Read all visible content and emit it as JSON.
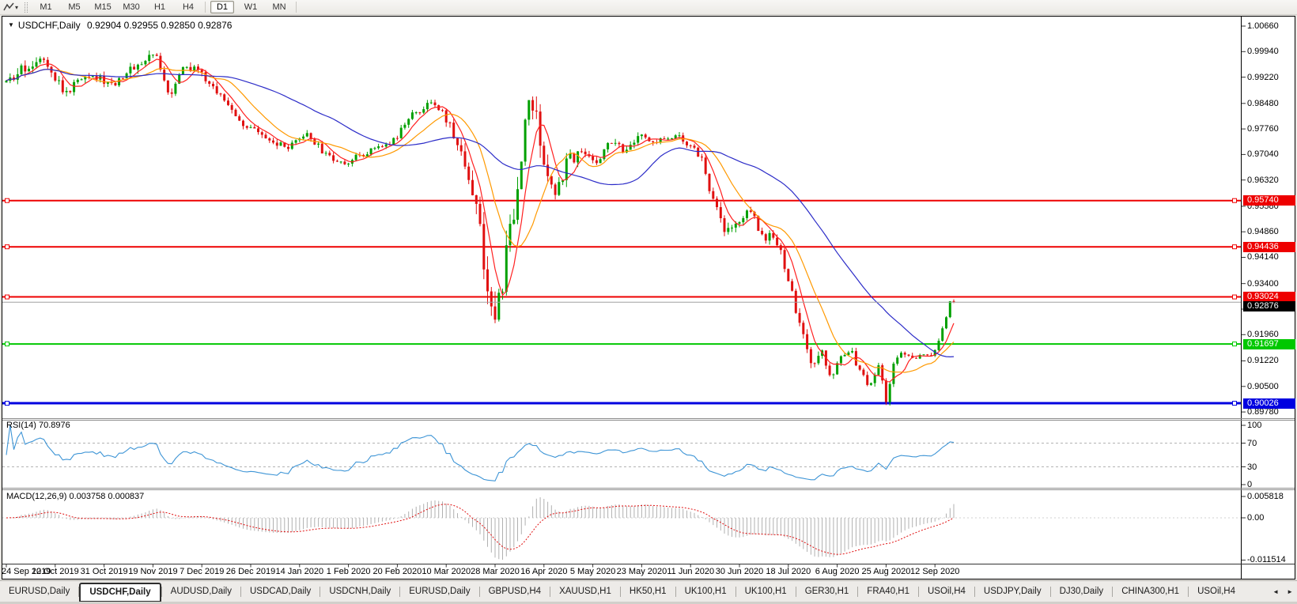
{
  "toolbar": {
    "timeframes": [
      "M1",
      "M5",
      "M15",
      "M30",
      "H1",
      "H4",
      "D1",
      "W1",
      "MN"
    ],
    "active_timeframe": "D1",
    "dropdown_caret": "▾"
  },
  "chart": {
    "window_menu_icon": "▼",
    "symbol": "USDCHF,Daily",
    "ohlc_text": "0.92904 0.92955 0.92850 0.92876",
    "price_axis": {
      "ticks": [
        "1.00660",
        "0.99940",
        "0.99220",
        "0.98480",
        "0.97760",
        "0.97040",
        "0.96320",
        "0.95580",
        "0.94860",
        "0.94140",
        "0.93400",
        "0.92680",
        "0.91960",
        "0.91220",
        "0.90500",
        "0.89780"
      ]
    },
    "current_price": {
      "label": "0.92876",
      "value": 0.92876,
      "line_color": "#a0a0a0",
      "label_bg": "#000000",
      "label_text": "#ffffff"
    },
    "date_axis": {
      "labels": [
        "24 Sep 2019",
        "12 Oct 2019",
        "31 Oct 2019",
        "19 Nov 2019",
        "7 Dec 2019",
        "26 Dec 2019",
        "14 Jan 2020",
        "1 Feb 2020",
        "20 Feb 2020",
        "10 Mar 2020",
        "28 Mar 2020",
        "16 Apr 2020",
        "5 May 2020",
        "23 May 2020",
        "11 Jun 2020",
        "30 Jun 2020",
        "18 Jul 2020",
        "6 Aug 2020",
        "25 Aug 2020",
        "12 Sep 2020"
      ]
    }
  },
  "rsi": {
    "label": "RSI(14) 70.8976",
    "value": 70.8976,
    "line_color": "#3e95d6",
    "levels": [
      70,
      30
    ],
    "ticks": [
      {
        "label": "100",
        "value": 100
      },
      {
        "label": "70",
        "value": 70
      },
      {
        "label": "30",
        "value": 30
      },
      {
        "label": "0",
        "value": 0
      }
    ]
  },
  "macd": {
    "label": "MACD(12,26,9) 0.003758 0.000837",
    "macd_value": 0.003758,
    "signal_value": 0.000837,
    "histogram_color": "#b0b0b0",
    "signal_color": "#e01010",
    "ticks": [
      {
        "label": "0.005818",
        "value": 0.005818
      },
      {
        "label": "0.00",
        "value": 0
      },
      {
        "label": "-0.011514",
        "value": -0.011514
      }
    ]
  },
  "tabs": {
    "items": [
      "EURUSD,Daily",
      "USDCHF,Daily",
      "AUDUSD,Daily",
      "USDCAD,Daily",
      "USDCNH,Daily",
      "EURUSD,Daily",
      "GBPUSD,H4",
      "XAUUSD,H1",
      "HK50,H1",
      "UK100,H1",
      "UK100,H1",
      "GER30,H1",
      "FRA40,H1",
      "USOil,H4",
      "USDJPY,Daily",
      "DJ30,Daily",
      "CHINA300,H1",
      "USOil,H4"
    ],
    "active_index": 1,
    "scroll_left_icon": "◄",
    "scroll_right_icon": "►"
  },
  "chart_data": {
    "type": "candlestick",
    "symbol": "USDCHF",
    "timeframe": "Daily",
    "current_ohlc": {
      "open": 0.92904,
      "high": 0.92955,
      "low": 0.9285,
      "close": 0.92876
    },
    "y_axis": {
      "top_tick": 1.0066,
      "tick_step": 0.0072,
      "bottom_tick": 0.8978
    },
    "x_start": "24 Sep 2019",
    "x_end_visible": "12 Sep 2020",
    "candle_count": 253,
    "up_color": "#00a000",
    "down_color": "#e01010",
    "moving_average_colors": [
      "#ff2020",
      "#ff9900",
      "#2c2cc8"
    ],
    "horizontal_levels": [
      {
        "price": 0.9574,
        "label": "0.95740",
        "color": "#ee0000",
        "width": 2
      },
      {
        "price": 0.94436,
        "label": "0.94436",
        "color": "#ee0000",
        "width": 2
      },
      {
        "price": 0.93024,
        "label": "0.93024",
        "color": "#ee0000",
        "width": 2
      },
      {
        "price": 0.91697,
        "label": "0.91697",
        "color": "#00c800",
        "width": 2
      },
      {
        "price": 0.90026,
        "label": "0.90026",
        "color": "#0000e0",
        "width": 3
      }
    ],
    "indicators": [
      {
        "name": "RSI",
        "period": 14,
        "current_value": 70.8976
      },
      {
        "name": "MACD",
        "fast": 12,
        "slow": 26,
        "signal": 9,
        "current_value": 0.003758,
        "current_signal": 0.000837
      }
    ],
    "price_path": [
      [
        0.0,
        0.9895,
        0.0022
      ],
      [
        0.018,
        0.9945,
        0.002
      ],
      [
        0.04,
        0.9985,
        0.0018
      ],
      [
        0.062,
        0.9872,
        0.0018
      ],
      [
        0.085,
        0.9938,
        0.0016
      ],
      [
        0.11,
        0.99,
        0.0016
      ],
      [
        0.135,
        0.9952,
        0.0015
      ],
      [
        0.158,
        0.9988,
        0.0015
      ],
      [
        0.172,
        0.9875,
        0.0016
      ],
      [
        0.188,
        0.9958,
        0.0016
      ],
      [
        0.205,
        0.993,
        0.0015
      ],
      [
        0.228,
        0.9862,
        0.0015
      ],
      [
        0.252,
        0.9788,
        0.0014
      ],
      [
        0.275,
        0.9742,
        0.0013
      ],
      [
        0.298,
        0.972,
        0.0012
      ],
      [
        0.318,
        0.9762,
        0.0011
      ],
      [
        0.338,
        0.9698,
        0.0011
      ],
      [
        0.358,
        0.968,
        0.001
      ],
      [
        0.382,
        0.9714,
        0.001
      ],
      [
        0.408,
        0.9742,
        0.0011
      ],
      [
        0.432,
        0.9826,
        0.0012
      ],
      [
        0.452,
        0.985,
        0.0013
      ],
      [
        0.468,
        0.9788,
        0.0018
      ],
      [
        0.483,
        0.969,
        0.0026
      ],
      [
        0.497,
        0.9565,
        0.0036
      ],
      [
        0.51,
        0.928,
        0.005
      ],
      [
        0.517,
        0.9215,
        0.0055
      ],
      [
        0.527,
        0.9415,
        0.005
      ],
      [
        0.538,
        0.9555,
        0.0046
      ],
      [
        0.55,
        0.9872,
        0.0058
      ],
      [
        0.556,
        0.9855,
        0.005
      ],
      [
        0.568,
        0.9645,
        0.004
      ],
      [
        0.58,
        0.9612,
        0.003
      ],
      [
        0.594,
        0.9688,
        0.0022
      ],
      [
        0.609,
        0.9718,
        0.0018
      ],
      [
        0.624,
        0.9682,
        0.0016
      ],
      [
        0.639,
        0.9748,
        0.0015
      ],
      [
        0.654,
        0.9706,
        0.0014
      ],
      [
        0.669,
        0.9755,
        0.0013
      ],
      [
        0.688,
        0.974,
        0.0012
      ],
      [
        0.704,
        0.976,
        0.0012
      ],
      [
        0.719,
        0.9732,
        0.0012
      ],
      [
        0.734,
        0.9695,
        0.0014
      ],
      [
        0.748,
        0.9552,
        0.0018
      ],
      [
        0.76,
        0.9482,
        0.0018
      ],
      [
        0.773,
        0.952,
        0.0016
      ],
      [
        0.786,
        0.9553,
        0.0014
      ],
      [
        0.799,
        0.9462,
        0.0016
      ],
      [
        0.811,
        0.948,
        0.0014
      ],
      [
        0.824,
        0.9372,
        0.0016
      ],
      [
        0.838,
        0.9212,
        0.0018
      ],
      [
        0.851,
        0.9098,
        0.0017
      ],
      [
        0.861,
        0.9148,
        0.0015
      ],
      [
        0.871,
        0.9062,
        0.0015
      ],
      [
        0.88,
        0.9128,
        0.0013
      ],
      [
        0.89,
        0.9158,
        0.0012
      ],
      [
        0.9,
        0.9102,
        0.0013
      ],
      [
        0.911,
        0.9042,
        0.0013
      ],
      [
        0.921,
        0.9118,
        0.0012
      ],
      [
        0.929,
        0.9008,
        0.0013
      ],
      [
        0.937,
        0.9125,
        0.0011
      ],
      [
        0.947,
        0.9152,
        0.001
      ],
      [
        0.957,
        0.9122,
        0.001
      ],
      [
        0.966,
        0.9146,
        0.0009
      ],
      [
        0.975,
        0.9128,
        0.0009
      ],
      [
        0.984,
        0.9175,
        0.0008
      ],
      [
        0.992,
        0.924,
        0.0008
      ],
      [
        1.0,
        0.929,
        0.0007
      ]
    ]
  }
}
